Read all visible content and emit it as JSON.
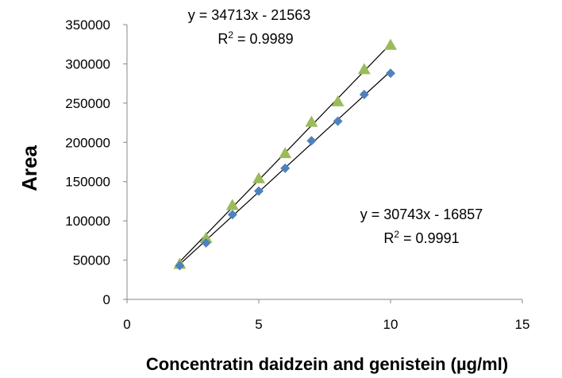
{
  "chart_data": {
    "type": "scatter",
    "xlabel": "Concentratin daidzein and genistein (µg/ml)",
    "ylabel": "Area",
    "xlim": [
      0,
      15
    ],
    "ylim": [
      0,
      350000
    ],
    "x_ticks": [
      "0",
      "5",
      "10",
      "15"
    ],
    "y_ticks": [
      "0",
      "50000",
      "100000",
      "150000",
      "200000",
      "250000",
      "300000",
      "350000"
    ],
    "grid": false,
    "legend": "none",
    "series": [
      {
        "marker": "triangle",
        "color": "#9BBB59",
        "x": [
          2,
          3,
          4,
          5,
          6,
          7,
          8,
          9,
          10
        ],
        "y": [
          45000,
          78000,
          120000,
          154000,
          186000,
          226000,
          252000,
          293000,
          324000
        ],
        "trendline": {
          "slope": 34713,
          "intercept": -21563
        },
        "equation": "y = 34713x - 21563",
        "r2_prefix": "R",
        "r2_sup": "2",
        "r2_value": " = 0.9989"
      },
      {
        "marker": "diamond",
        "color": "#4F81BD",
        "x": [
          2,
          3,
          4,
          5,
          6,
          7,
          8,
          9,
          10
        ],
        "y": [
          43000,
          72000,
          108000,
          138000,
          167000,
          202000,
          227000,
          261000,
          288000
        ],
        "trendline": {
          "slope": 30743,
          "intercept": -16857
        },
        "equation": "y = 30743x - 16857",
        "r2_prefix": "R",
        "r2_sup": "2",
        "r2_value": " = 0.9991"
      }
    ]
  }
}
